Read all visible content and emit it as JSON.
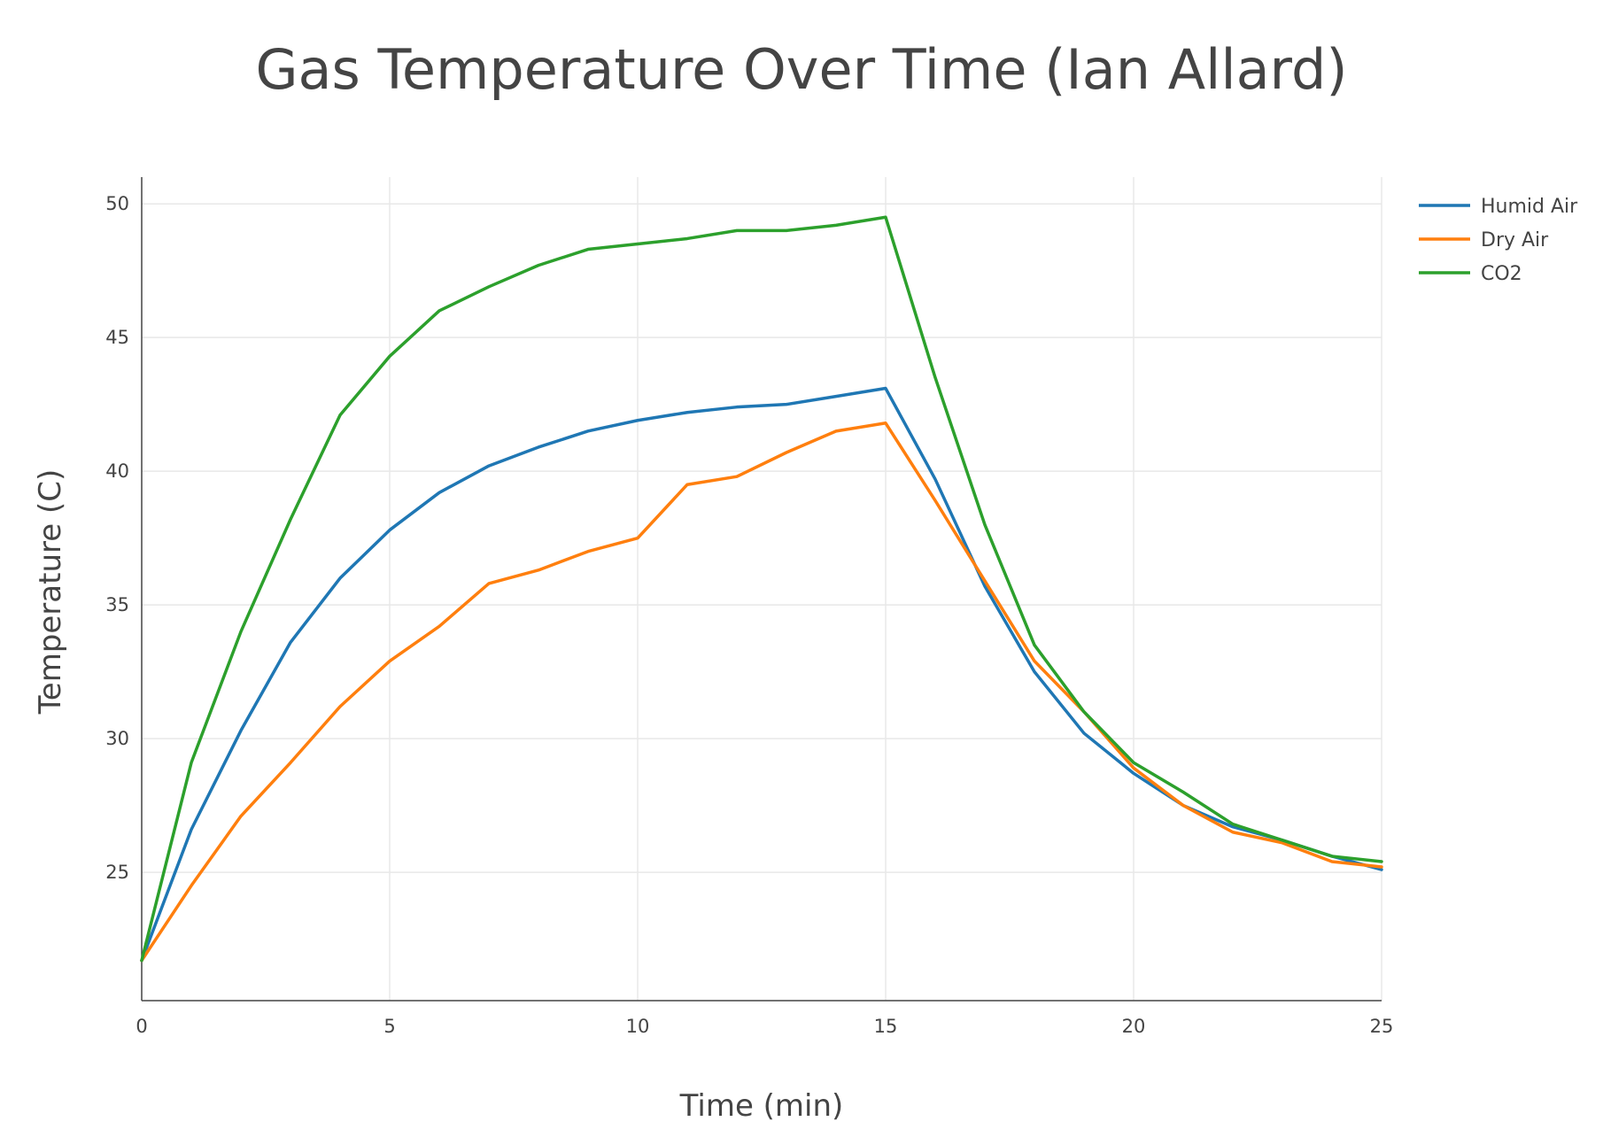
{
  "chart_data": {
    "type": "line",
    "title": "Gas Temperature Over Time (Ian Allard)",
    "xlabel": "Time (min)",
    "ylabel": "Temperature (C)",
    "xlim": [
      0,
      25
    ],
    "ylim": [
      20.2,
      51
    ],
    "xticks": [
      0,
      5,
      10,
      15,
      20,
      25
    ],
    "yticks": [
      25,
      30,
      35,
      40,
      45,
      50
    ],
    "grid": true,
    "legend_position": "top-right",
    "x": [
      0,
      1,
      2,
      3,
      4,
      5,
      6,
      7,
      8,
      9,
      10,
      11,
      12,
      13,
      14,
      15,
      16,
      17,
      18,
      19,
      20,
      21,
      22,
      23,
      24,
      25
    ],
    "series": [
      {
        "name": "Humid Air",
        "color": "#1f77b4",
        "values": [
          21.7,
          26.6,
          30.3,
          33.6,
          36.0,
          37.8,
          39.2,
          40.2,
          40.9,
          41.5,
          41.9,
          42.2,
          42.4,
          42.5,
          42.8,
          43.1,
          39.7,
          35.7,
          32.5,
          30.2,
          28.7,
          27.5,
          26.7,
          26.2,
          25.6,
          25.1
        ]
      },
      {
        "name": "Dry Air",
        "color": "#ff7f0e",
        "values": [
          21.7,
          24.5,
          27.1,
          29.1,
          31.2,
          32.9,
          34.2,
          35.8,
          36.3,
          37.0,
          37.5,
          39.5,
          39.8,
          40.7,
          41.5,
          41.8,
          38.9,
          35.9,
          32.9,
          31.0,
          28.9,
          27.5,
          26.5,
          26.1,
          25.4,
          25.2
        ]
      },
      {
        "name": "CO2",
        "color": "#2ca02c",
        "values": [
          21.7,
          29.1,
          34.0,
          38.2,
          42.1,
          44.3,
          46.0,
          46.9,
          47.7,
          48.3,
          48.5,
          48.7,
          49.0,
          49.0,
          49.2,
          49.5,
          43.5,
          38.0,
          33.5,
          31.0,
          29.1,
          28.0,
          26.8,
          26.2,
          25.6,
          25.4
        ]
      }
    ]
  }
}
